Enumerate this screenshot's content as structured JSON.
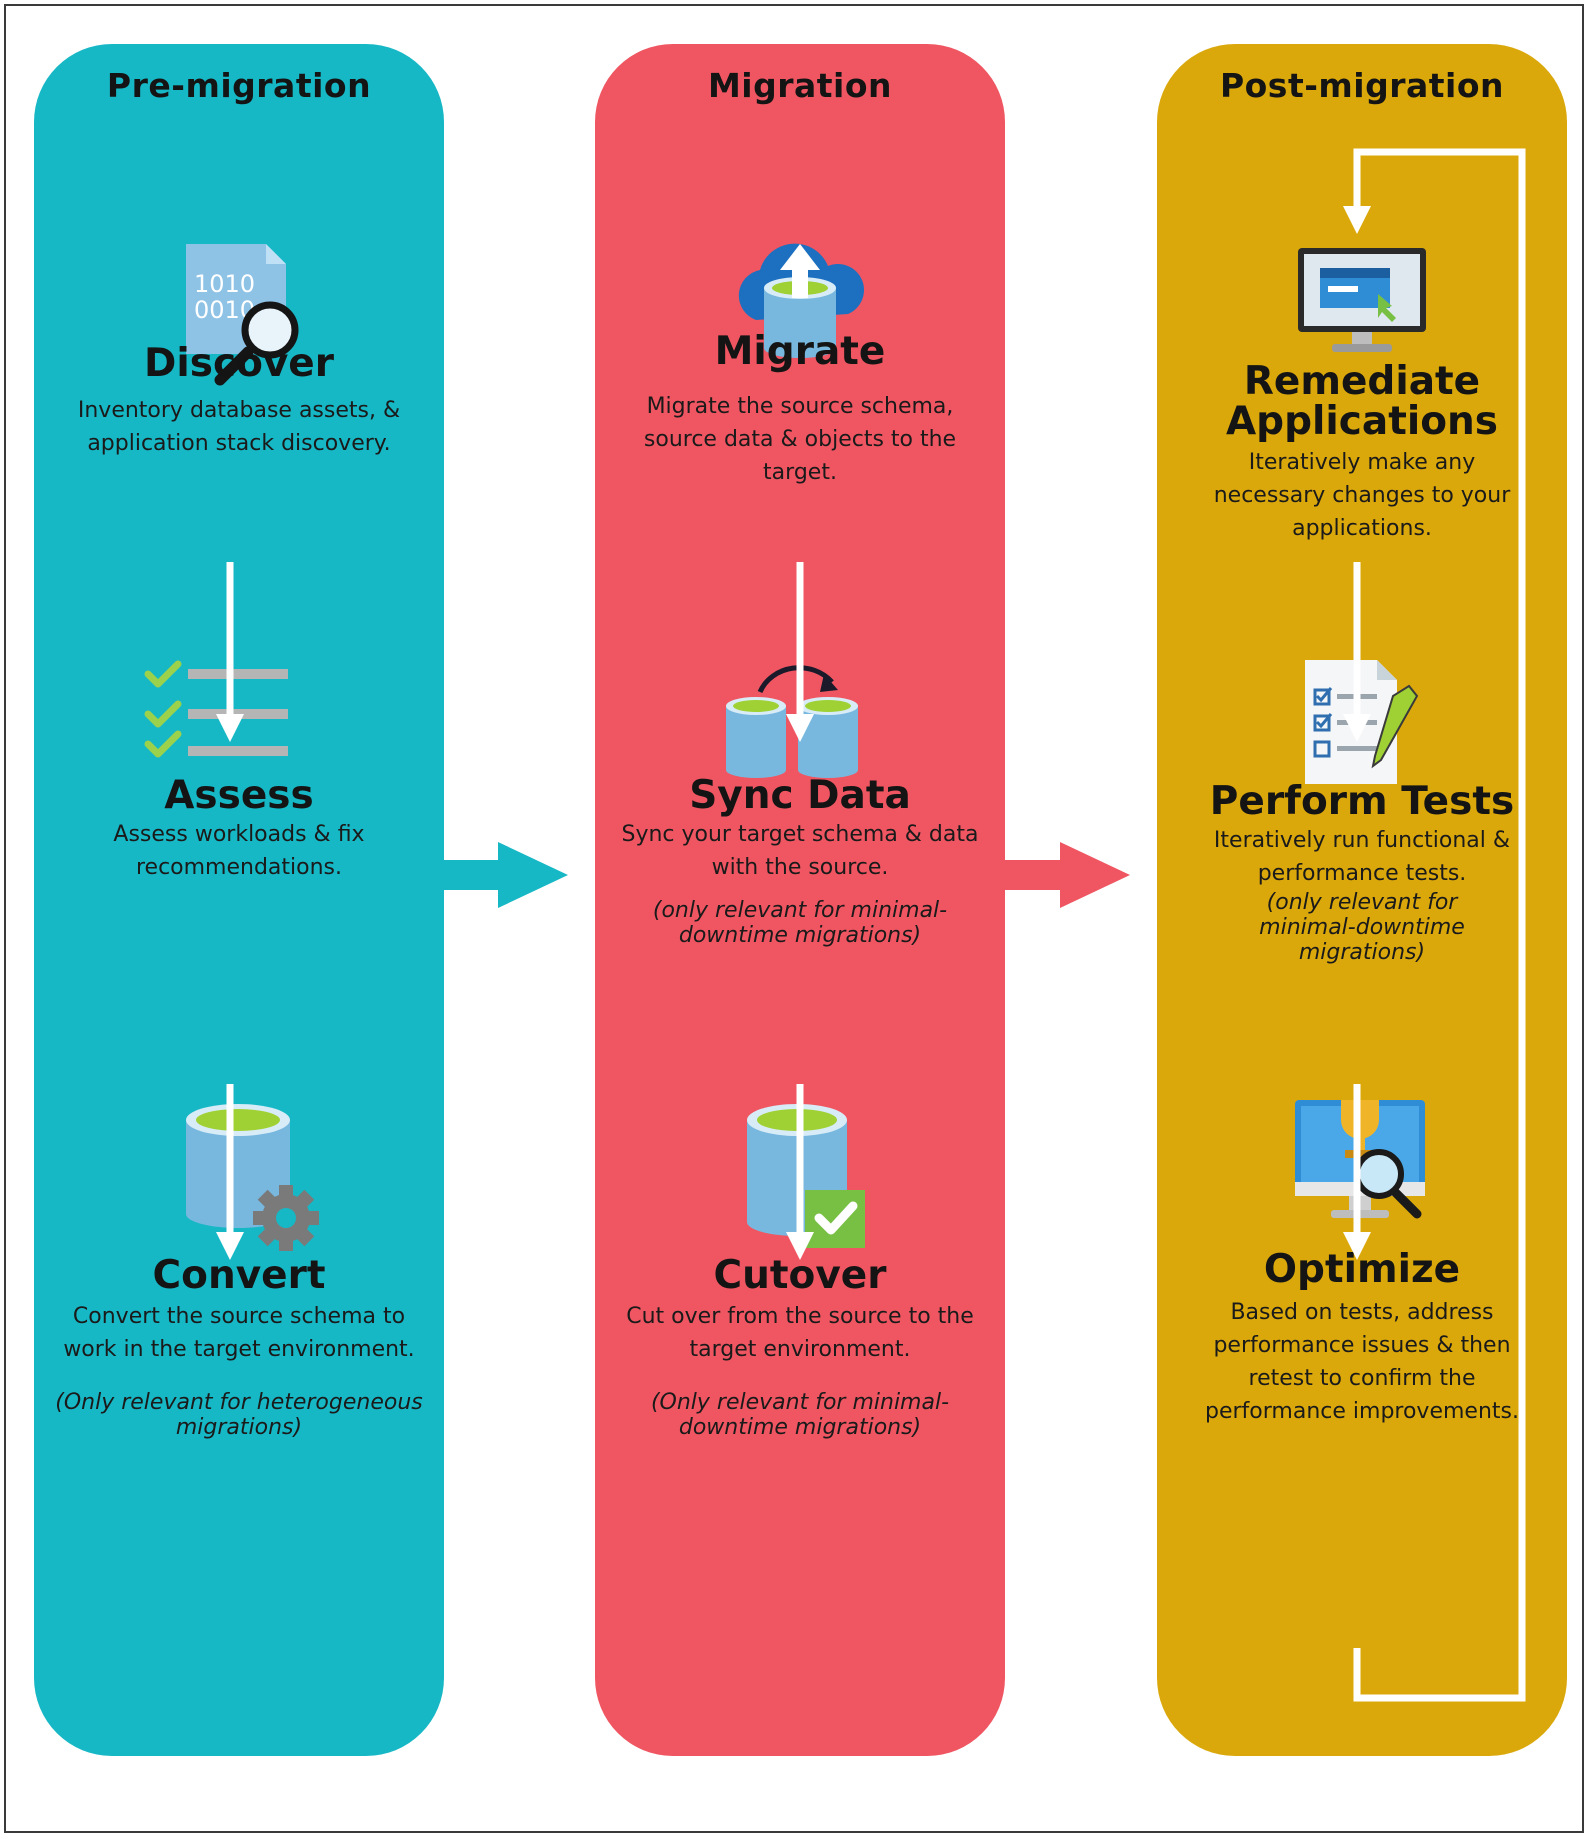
{
  "columns": {
    "pre": {
      "title": "Pre-migration",
      "steps": [
        {
          "title": "Discover",
          "desc": "Inventory database assets, & application stack discovery.",
          "icon": "binary-file-magnifier-icon"
        },
        {
          "title": "Assess",
          "desc": "Assess workloads & fix recommendations.",
          "icon": "checklist-icon"
        },
        {
          "title": "Convert",
          "desc": "Convert the source schema to work in the target environment.",
          "note": "(Only relevant for heterogeneous migrations)",
          "icon": "database-gear-icon"
        }
      ]
    },
    "mig": {
      "title": "Migration",
      "steps": [
        {
          "title": "Migrate",
          "desc": "Migrate the source schema, source data & objects to the target.",
          "icon": "cloud-upload-database-icon"
        },
        {
          "title": "Sync Data",
          "desc": "Sync your target schema & data with the source.",
          "note": "(only relevant for minimal-downtime migrations)",
          "icon": "database-sync-icon"
        },
        {
          "title": "Cutover",
          "desc": "Cut over from the source to the target environment.",
          "note": "(Only relevant for minimal-downtime migrations)",
          "icon": "database-check-icon"
        }
      ]
    },
    "post": {
      "title": "Post-migration",
      "steps": [
        {
          "title": "Remediate Applications",
          "desc": "Iteratively make any necessary changes to your applications.",
          "icon": "monitor-app-icon"
        },
        {
          "title": "Perform Tests",
          "desc": "Iteratively run functional & performance tests.",
          "note": "(only relevant for minimal-downtime migrations)",
          "icon": "test-document-pencil-icon"
        },
        {
          "title": "Optimize",
          "desc": "Based on tests, address performance issues & then retest to confirm the performance improvements.",
          "icon": "monitor-trophy-magnifier-icon"
        }
      ]
    }
  },
  "colors": {
    "pre": "#17b8c6",
    "mig": "#ef5662",
    "post": "#dba80c"
  }
}
